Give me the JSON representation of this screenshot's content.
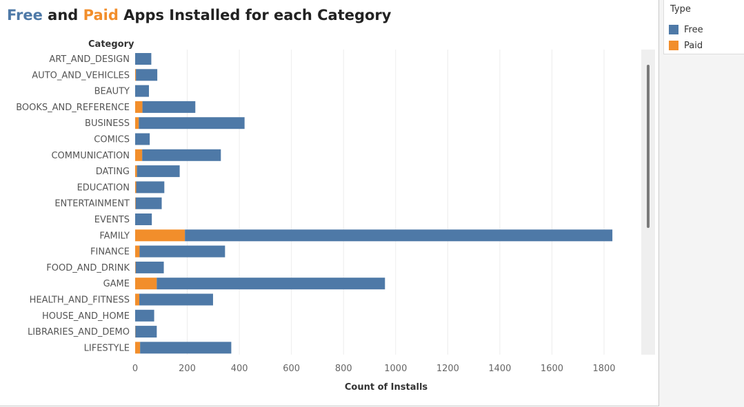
{
  "title": {
    "part1": "Free",
    "part2": " and ",
    "part3": "Paid",
    "part4": " Apps Installed for each Category"
  },
  "legend": {
    "title": "Type",
    "items": [
      {
        "label": "Free",
        "color": "#4e79a7"
      },
      {
        "label": "Paid",
        "color": "#f28e2b"
      }
    ]
  },
  "chart_data": {
    "type": "bar",
    "orientation": "horizontal",
    "stacked": true,
    "ylabel": "Category",
    "xlabel": "Count of Installs",
    "xlim": [
      0,
      1900
    ],
    "xticks": [
      0,
      200,
      400,
      600,
      800,
      1000,
      1200,
      1400,
      1600,
      1800
    ],
    "grid": true,
    "legend_position": "top-right",
    "categories": [
      "ART_AND_DESIGN",
      "AUTO_AND_VEHICLES",
      "BEAUTY",
      "BOOKS_AND_REFERENCE",
      "BUSINESS",
      "COMICS",
      "COMMUNICATION",
      "DATING",
      "EDUCATION",
      "ENTERTAINMENT",
      "EVENTS",
      "FAMILY",
      "FINANCE",
      "FOOD_AND_DRINK",
      "GAME",
      "HEALTH_AND_FITNESS",
      "HOUSE_AND_HOME",
      "LIBRARIES_AND_DEMO",
      "LIFESTYLE"
    ],
    "series": [
      {
        "name": "Paid",
        "color": "#f28e2b",
        "values": [
          0,
          3,
          0,
          28,
          14,
          0,
          27,
          7,
          4,
          2,
          0,
          191,
          17,
          2,
          83,
          16,
          0,
          1,
          19
        ]
      },
      {
        "name": "Free",
        "color": "#4e79a7",
        "values": [
          62,
          82,
          53,
          203,
          406,
          56,
          302,
          164,
          108,
          100,
          64,
          1641,
          328,
          108,
          876,
          283,
          73,
          82,
          350
        ]
      }
    ]
  }
}
